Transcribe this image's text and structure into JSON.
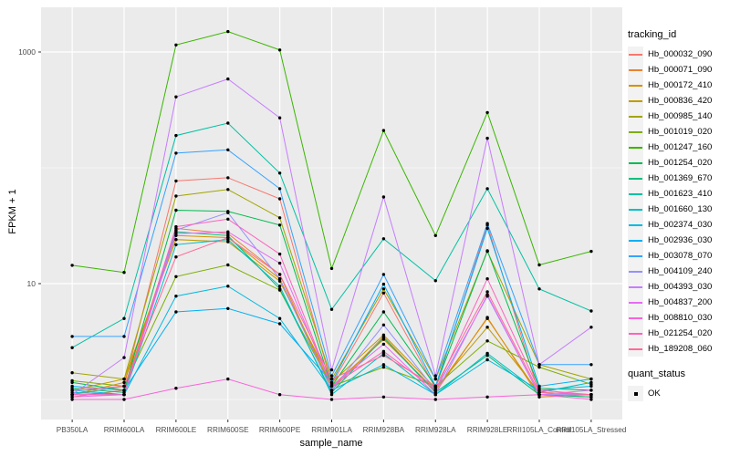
{
  "figure": {
    "y_axis": {
      "label": "FPKM + 1"
    },
    "x_axis": {
      "label": "sample_name"
    },
    "legend": {
      "tracking_title": "tracking_id",
      "quant_title": "quant_status",
      "quant_ok_label": "OK"
    }
  },
  "chart_data": {
    "type": "line",
    "title": "",
    "xlabel": "sample_name",
    "ylabel": "FPKM + 1",
    "y_scale": "log10",
    "ylim": [
      0.7,
      2400
    ],
    "y_ticks": [
      10,
      1000
    ],
    "y_minor_gridlines": [
      1,
      100
    ],
    "grid": true,
    "legend_position": "right",
    "panel_bg": "#EBEBEB",
    "grid_color": "#FFFFFF",
    "tick_label_color": "#4D4D4D",
    "point_color": "#000000",
    "point_legend": {
      "title": "quant_status",
      "items": [
        {
          "label": "OK",
          "shape": "black-square"
        }
      ]
    },
    "categories": [
      "PB350LA",
      "RRIM600LA",
      "RRIM600LE",
      "RRIM600SE",
      "RRIM600PE",
      "RRIM901LA",
      "RRIM928BA",
      "RRIM928LA",
      "RRIM928LE",
      "RRII105LA_Control",
      "RRII105LA_Stressed"
    ],
    "series": [
      {
        "name": "Hb_000032_090",
        "color": "#F8766D",
        "values": [
          1.1,
          1.3,
          77,
          82,
          54,
          1.35,
          8.3,
          1.25,
          32,
          1.1,
          1.1
        ]
      },
      {
        "name": "Hb_000071_090",
        "color": "#EA8331",
        "values": [
          1.05,
          1.2,
          30,
          27,
          12,
          1.2,
          3.5,
          1.15,
          5.1,
          1.05,
          1.1
        ]
      },
      {
        "name": "Hb_000172_410",
        "color": "#D89000",
        "values": [
          1.1,
          1.4,
          26,
          25,
          11,
          1.3,
          3.3,
          1.2,
          5.0,
          1.1,
          1.05
        ]
      },
      {
        "name": "Hb_000836_420",
        "color": "#C09B00",
        "values": [
          1.2,
          1.5,
          24,
          23,
          10.5,
          1.4,
          3.6,
          1.25,
          4.2,
          1.15,
          1.1
        ]
      },
      {
        "name": "Hb_000985_140",
        "color": "#A3A500",
        "values": [
          1.7,
          1.5,
          57,
          65,
          37,
          1.5,
          9.0,
          1.5,
          19,
          2.0,
          1.5
        ]
      },
      {
        "name": "Hb_001019_020",
        "color": "#7CAE00",
        "values": [
          1.45,
          1.3,
          11.5,
          14.5,
          8.8,
          1.3,
          1.9,
          1.3,
          3.2,
          1.9,
          1.35
        ]
      },
      {
        "name": "Hb_001247_160",
        "color": "#39B600",
        "values": [
          14.4,
          12.5,
          1150,
          1500,
          1040,
          13.5,
          210,
          26,
          300,
          14.5,
          19
        ]
      },
      {
        "name": "Hb_001254_020",
        "color": "#00BB4E",
        "values": [
          1.4,
          1.2,
          43,
          42,
          32,
          1.3,
          5.7,
          1.3,
          19.2,
          1.25,
          1.2
        ]
      },
      {
        "name": "Hb_001369_670",
        "color": "#00BF7D",
        "values": [
          1.25,
          1.15,
          28,
          26,
          9.0,
          1.15,
          3.4,
          1.15,
          2.4,
          1.1,
          1.05
        ]
      },
      {
        "name": "Hb_001623_410",
        "color": "#00C1A3",
        "values": [
          2.8,
          5.0,
          190,
          243,
          90,
          6.0,
          24.4,
          10.6,
          66,
          9.0,
          5.8
        ]
      },
      {
        "name": "Hb_001660_130",
        "color": "#00BFC4",
        "values": [
          1.15,
          1.1,
          21.7,
          24,
          9.5,
          1.1,
          2.5,
          1.1,
          2.5,
          1.15,
          1.4
        ]
      },
      {
        "name": "Hb_002374_030",
        "color": "#00BAE0",
        "values": [
          1.2,
          1.1,
          7.8,
          9.5,
          5.0,
          1.2,
          2.0,
          1.1,
          2.2,
          1.2,
          1.3
        ]
      },
      {
        "name": "Hb_002936_030",
        "color": "#00B0F6",
        "values": [
          1.3,
          1.2,
          5.7,
          6.1,
          4.5,
          1.4,
          9.9,
          1.3,
          30,
          1.3,
          1.5
        ]
      },
      {
        "name": "Hb_003078_070",
        "color": "#35A2FF",
        "values": [
          3.5,
          3.5,
          134,
          143,
          66,
          1.6,
          12,
          1.5,
          33,
          2.0,
          2.0
        ]
      },
      {
        "name": "Hb_004109_240",
        "color": "#9590FF",
        "values": [
          1.1,
          1.1,
          29,
          41,
          11,
          1.2,
          4.4,
          1.2,
          7.8,
          1.1,
          1.1
        ]
      },
      {
        "name": "Hb_004393_030",
        "color": "#C77CFF",
        "values": [
          1.1,
          2.3,
          410,
          585,
          270,
          1.8,
          56,
          1.6,
          180,
          2.0,
          4.2
        ]
      },
      {
        "name": "Hb_004837_200",
        "color": "#E76BF3",
        "values": [
          1.05,
          1.1,
          27,
          28,
          15,
          1.3,
          3.0,
          1.1,
          8.0,
          1.1,
          1.2
        ]
      },
      {
        "name": "Hb_008810_030",
        "color": "#FA62DB",
        "values": [
          1.0,
          1.0,
          1.25,
          1.5,
          1.1,
          1.0,
          1.05,
          1.0,
          1.05,
          1.1,
          1.0
        ]
      },
      {
        "name": "Hb_021254_020",
        "color": "#FF62BC",
        "values": [
          1.1,
          1.1,
          31,
          36,
          18,
          1.3,
          2.6,
          1.2,
          11,
          1.2,
          1.1
        ]
      },
      {
        "name": "Hb_189208_060",
        "color": "#FF6A98",
        "values": [
          1.2,
          1.3,
          17,
          25,
          12,
          1.5,
          2.4,
          1.3,
          8.5,
          1.15,
          1.1
        ]
      }
    ]
  }
}
